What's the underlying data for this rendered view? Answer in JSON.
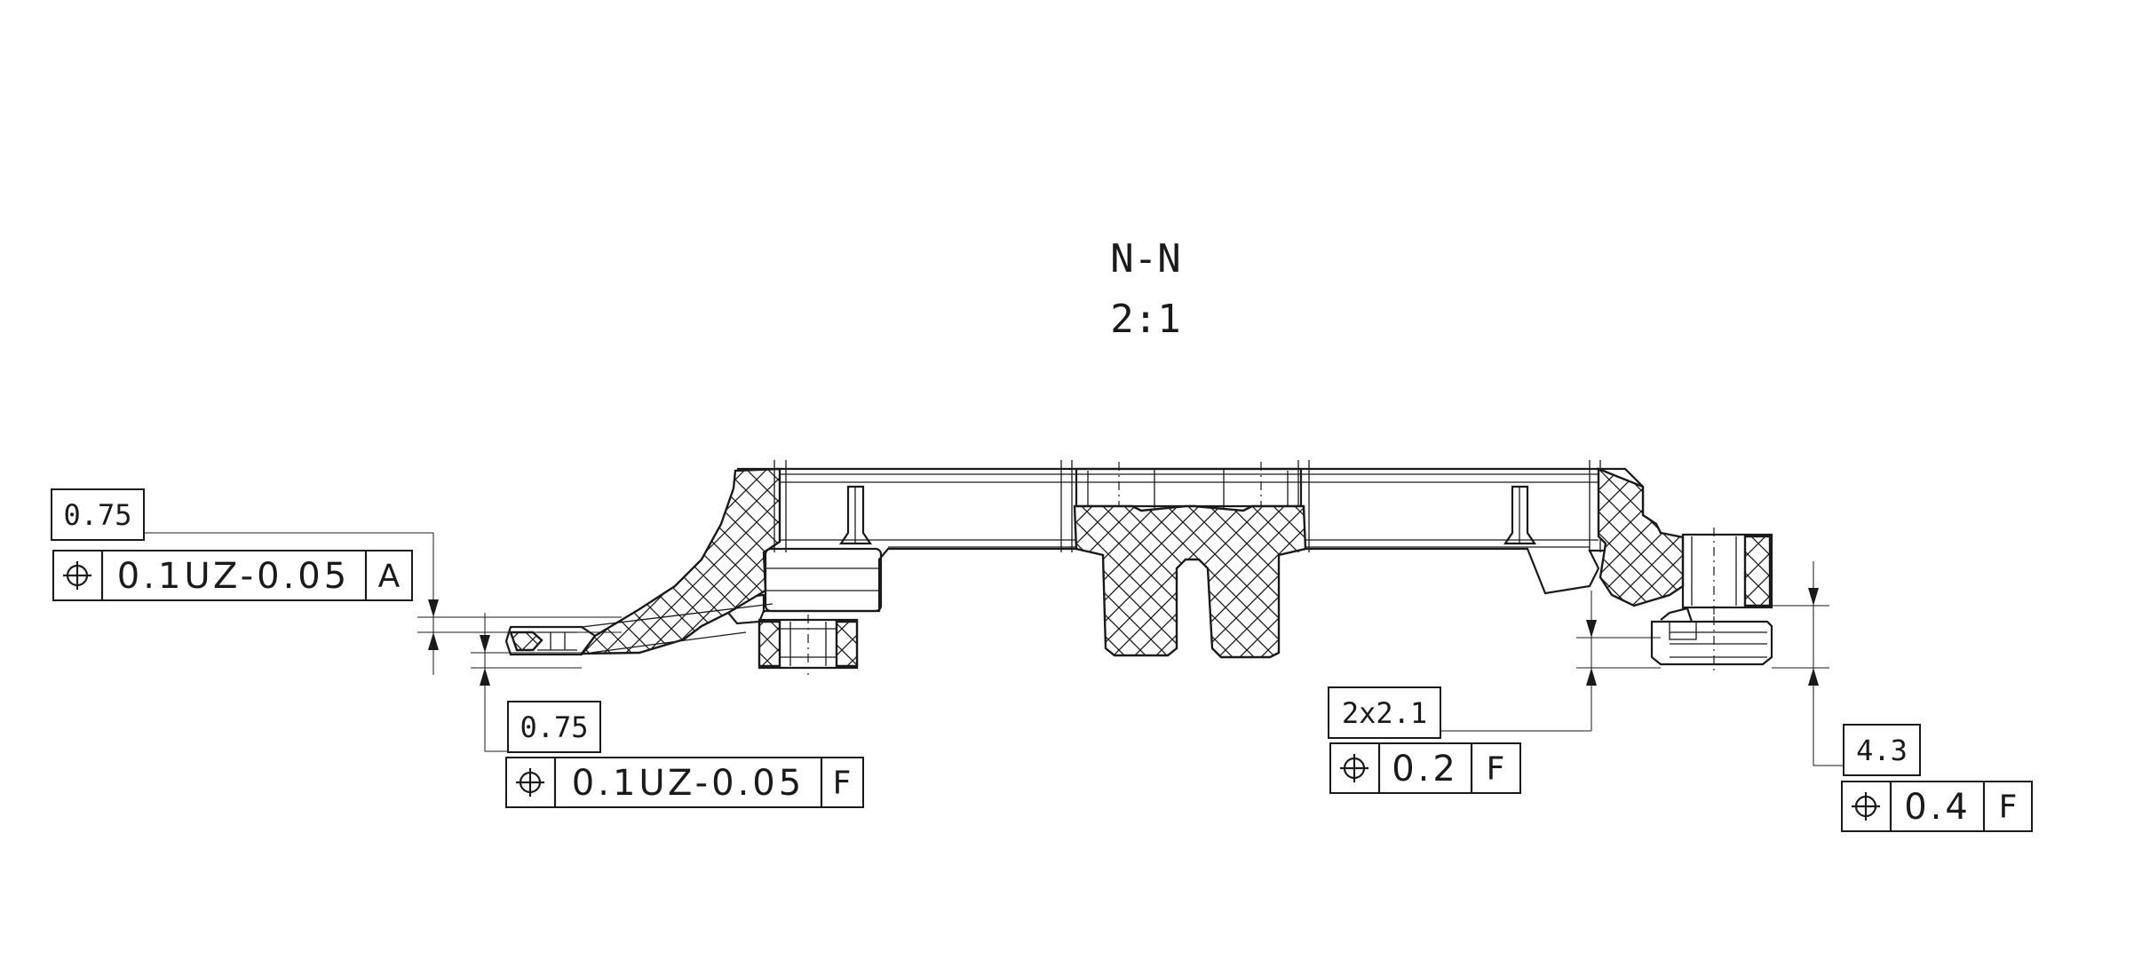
{
  "view": {
    "section_label": "N-N",
    "scale": "2:1"
  },
  "callouts": {
    "left_top": {
      "basic_dim": "0.75",
      "symbol": "position-icon",
      "tolerance": "0.1UZ-0.05",
      "datum": "A"
    },
    "left_bottom": {
      "basic_dim": "0.75",
      "symbol": "position-icon",
      "tolerance": "0.1UZ-0.05",
      "datum": "F"
    },
    "right_middle": {
      "basic_dim": "2x2.1",
      "symbol": "position-icon",
      "tolerance": "0.2",
      "datum": "F"
    },
    "right_end": {
      "basic_dim": "4.3",
      "symbol": "position-icon",
      "tolerance": "0.4",
      "datum": "F"
    }
  },
  "colors": {
    "ink": "#1a1a1a",
    "paper": "#ffffff"
  }
}
